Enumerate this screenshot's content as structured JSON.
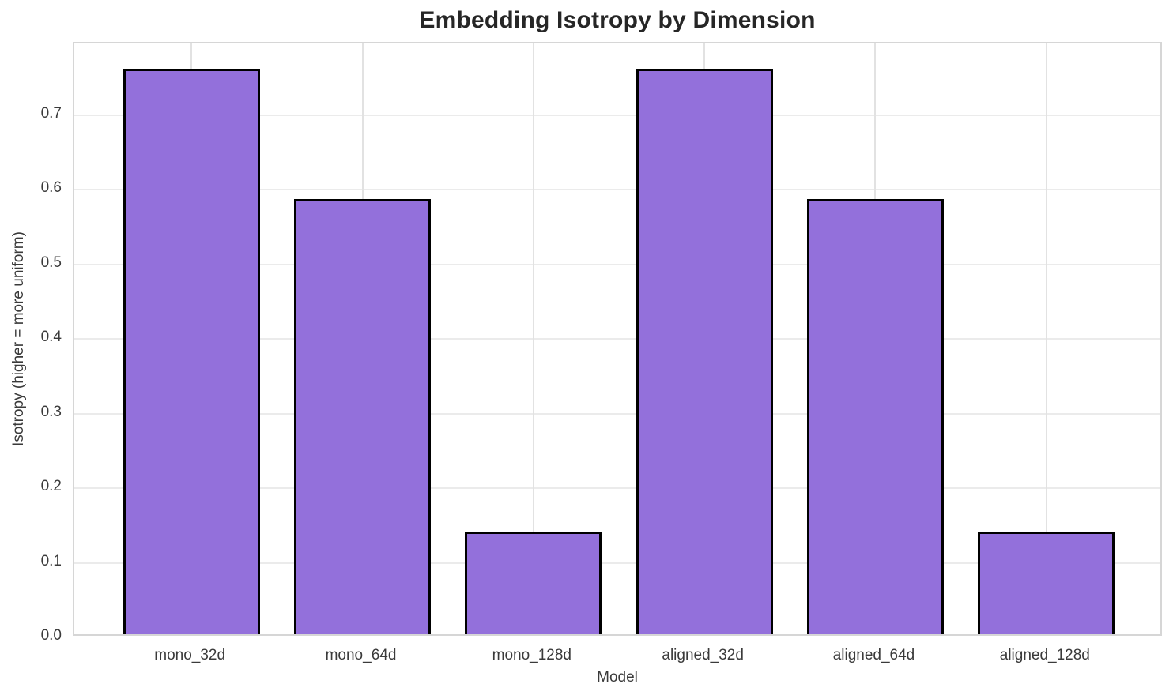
{
  "chart_data": {
    "type": "bar",
    "title": "Embedding Isotropy by Dimension",
    "xlabel": "Model",
    "ylabel": "Isotropy (higher = more uniform)",
    "categories": [
      "mono_32d",
      "mono_64d",
      "mono_128d",
      "aligned_32d",
      "aligned_64d",
      "aligned_128d"
    ],
    "values": [
      0.758,
      0.583,
      0.138,
      0.758,
      0.583,
      0.138
    ],
    "ylim": [
      0,
      0.796
    ],
    "yticks": [
      0.0,
      0.1,
      0.2,
      0.3,
      0.4,
      0.5,
      0.6,
      0.7
    ],
    "ytick_labels": [
      "0.0",
      "0.1",
      "0.2",
      "0.3",
      "0.4",
      "0.5",
      "0.6",
      "0.7"
    ],
    "grid": true,
    "legend": "none",
    "bar_width_fraction": 0.8,
    "colors": {
      "bar_fill": "#9370DB",
      "bar_edge": "#000000",
      "grid": "#e8e8e8",
      "spine": "#d6d6d6",
      "title_text": "#262626",
      "tick_text": "#3a3a3a",
      "background": "#ffffff"
    }
  }
}
